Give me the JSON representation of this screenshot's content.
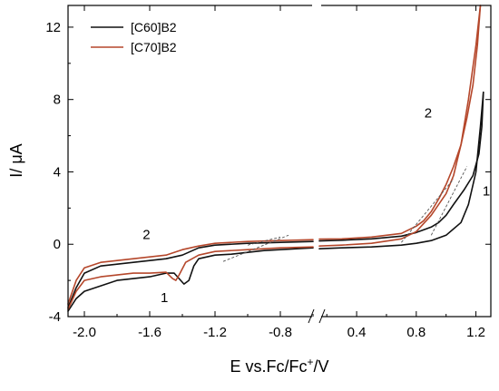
{
  "chart_data": {
    "type": "line",
    "xlabel": "E vs.Fc/Fc",
    "xlabel_sup": "+",
    "xlabel_tail": "/V",
    "ylabel": "I/ μA",
    "axis_break": true,
    "x_segments": [
      {
        "range": [
          -2.1,
          -0.6
        ],
        "ticks": [
          -2.0,
          -1.6,
          -1.2,
          -0.8
        ],
        "tick_labels": [
          "-2.0",
          "-1.6",
          "-1.2",
          "-0.8"
        ]
      },
      {
        "range": [
          0.15,
          1.3
        ],
        "ticks": [
          0.4,
          0.8,
          1.2
        ],
        "tick_labels": [
          "0.4",
          "0.8",
          "1.2"
        ]
      }
    ],
    "ylim": [
      -4,
      13.2
    ],
    "y_ticks": [
      -4,
      0,
      4,
      8,
      12
    ],
    "y_tick_labels": [
      "-4",
      "0",
      "4",
      "8",
      "12"
    ],
    "legend_position": "top-left",
    "series": [
      {
        "name": "[C60]B2",
        "color": "#111111",
        "loops": [
          {
            "points": [
              [
                -2.1,
                -3.7
              ],
              [
                -2.05,
                -3.0
              ],
              [
                -2.0,
                -2.6
              ],
              [
                -1.9,
                -2.3
              ],
              [
                -1.8,
                -2.0
              ],
              [
                -1.7,
                -1.9
              ],
              [
                -1.6,
                -1.8
              ],
              [
                -1.5,
                -1.6
              ],
              [
                -1.45,
                -1.6
              ],
              [
                -1.42,
                -1.9
              ],
              [
                -1.39,
                -2.2
              ],
              [
                -1.36,
                -2.0
              ],
              [
                -1.33,
                -1.2
              ],
              [
                -1.3,
                -0.8
              ],
              [
                -1.2,
                -0.6
              ],
              [
                -1.1,
                -0.55
              ],
              [
                -1.0,
                -0.45
              ],
              [
                -0.9,
                -0.35
              ],
              [
                -0.8,
                -0.3
              ],
              [
                -0.7,
                -0.25
              ],
              [
                -0.6,
                -0.2
              ]
            ]
          },
          {
            "points": [
              [
                -2.1,
                -3.5
              ],
              [
                -2.05,
                -2.4
              ],
              [
                -2.0,
                -1.6
              ],
              [
                -1.9,
                -1.2
              ],
              [
                -1.8,
                -1.1
              ],
              [
                -1.7,
                -1.0
              ],
              [
                -1.6,
                -0.9
              ],
              [
                -1.5,
                -0.8
              ],
              [
                -1.4,
                -0.6
              ],
              [
                -1.3,
                -0.2
              ],
              [
                -1.2,
                -0.05
              ],
              [
                -1.0,
                0.05
              ],
              [
                -0.8,
                0.1
              ],
              [
                -0.6,
                0.15
              ]
            ]
          },
          {
            "points": [
              [
                0.15,
                -0.25
              ],
              [
                0.3,
                -0.2
              ],
              [
                0.5,
                -0.15
              ],
              [
                0.7,
                -0.05
              ],
              [
                0.8,
                0.05
              ],
              [
                0.9,
                0.2
              ],
              [
                1.0,
                0.5
              ],
              [
                1.1,
                1.2
              ],
              [
                1.15,
                2.2
              ],
              [
                1.2,
                4.0
              ],
              [
                1.23,
                6.5
              ],
              [
                1.25,
                8.4
              ]
            ]
          },
          {
            "points": [
              [
                1.25,
                8.4
              ],
              [
                1.24,
                6.5
              ],
              [
                1.22,
                5.0
              ],
              [
                1.18,
                3.8
              ],
              [
                1.12,
                3.0
              ],
              [
                1.05,
                2.2
              ],
              [
                1.0,
                1.6
              ],
              [
                0.95,
                1.2
              ],
              [
                0.9,
                0.95
              ],
              [
                0.8,
                0.65
              ],
              [
                0.7,
                0.45
              ],
              [
                0.5,
                0.3
              ],
              [
                0.3,
                0.22
              ],
              [
                0.15,
                0.18
              ]
            ]
          }
        ]
      },
      {
        "name": "[C70]B2",
        "color": "#b5472b",
        "loops": [
          {
            "points": [
              [
                -2.1,
                -3.6
              ],
              [
                -2.05,
                -2.6
              ],
              [
                -2.0,
                -2.0
              ],
              [
                -1.9,
                -1.8
              ],
              [
                -1.8,
                -1.7
              ],
              [
                -1.7,
                -1.6
              ],
              [
                -1.6,
                -1.6
              ],
              [
                -1.5,
                -1.55
              ],
              [
                -1.46,
                -1.9
              ],
              [
                -1.44,
                -2.0
              ],
              [
                -1.42,
                -1.7
              ],
              [
                -1.38,
                -1.0
              ],
              [
                -1.3,
                -0.6
              ],
              [
                -1.2,
                -0.4
              ],
              [
                -1.0,
                -0.3
              ],
              [
                -0.8,
                -0.2
              ],
              [
                -0.6,
                -0.15
              ]
            ]
          },
          {
            "points": [
              [
                -2.1,
                -3.3
              ],
              [
                -2.05,
                -2.0
              ],
              [
                -2.0,
                -1.3
              ],
              [
                -1.9,
                -1.0
              ],
              [
                -1.8,
                -0.9
              ],
              [
                -1.7,
                -0.8
              ],
              [
                -1.6,
                -0.7
              ],
              [
                -1.5,
                -0.6
              ],
              [
                -1.4,
                -0.3
              ],
              [
                -1.3,
                -0.1
              ],
              [
                -1.2,
                0.05
              ],
              [
                -1.0,
                0.15
              ],
              [
                -0.8,
                0.2
              ],
              [
                -0.6,
                0.25
              ]
            ]
          },
          {
            "points": [
              [
                0.15,
                -0.1
              ],
              [
                0.3,
                -0.05
              ],
              [
                0.5,
                0.05
              ],
              [
                0.7,
                0.3
              ],
              [
                0.8,
                0.7
              ],
              [
                0.9,
                1.6
              ],
              [
                1.0,
                2.8
              ],
              [
                1.05,
                3.8
              ],
              [
                1.1,
                5.5
              ],
              [
                1.15,
                8.0
              ],
              [
                1.2,
                11.0
              ],
              [
                1.23,
                13.2
              ]
            ]
          },
          {
            "points": [
              [
                1.23,
                13.2
              ],
              [
                1.21,
                11.0
              ],
              [
                1.18,
                8.8
              ],
              [
                1.14,
                7.0
              ],
              [
                1.1,
                5.5
              ],
              [
                1.05,
                4.3
              ],
              [
                1.0,
                3.3
              ],
              [
                0.95,
                2.5
              ],
              [
                0.9,
                1.8
              ],
              [
                0.85,
                1.3
              ],
              [
                0.8,
                1.0
              ],
              [
                0.7,
                0.6
              ],
              [
                0.5,
                0.4
              ],
              [
                0.3,
                0.3
              ],
              [
                0.15,
                0.28
              ]
            ]
          }
        ]
      }
    ],
    "annotations": [
      {
        "text": "2",
        "x": -1.62,
        "y": 0.3
      },
      {
        "text": "1",
        "x": -1.51,
        "y": -3.2
      },
      {
        "text": "2",
        "x": 0.88,
        "y": 7.0
      },
      {
        "text": "1",
        "x": 1.27,
        "y": 2.7
      }
    ],
    "tangent_lines": [
      {
        "points": [
          [
            -1.15,
            -0.95
          ],
          [
            -0.75,
            0.5
          ]
        ]
      },
      {
        "points": [
          [
            -1.0,
            -0.05
          ],
          [
            -0.8,
            0.4
          ]
        ]
      },
      {
        "points": [
          [
            0.7,
            0.1
          ],
          [
            1.05,
            3.6
          ]
        ]
      },
      {
        "points": [
          [
            0.9,
            0.5
          ],
          [
            1.14,
            4.3
          ]
        ]
      }
    ]
  }
}
